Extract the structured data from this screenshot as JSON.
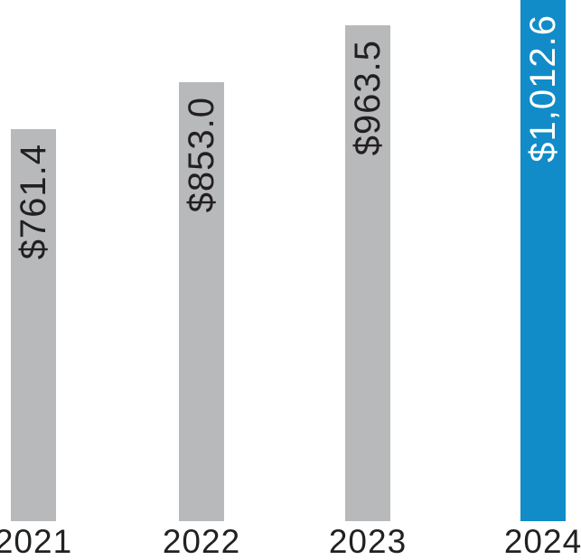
{
  "chart_data": {
    "type": "bar",
    "title": "",
    "xlabel": "",
    "ylabel": "",
    "categories": [
      "2021",
      "2022",
      "2023",
      "2024"
    ],
    "values": [
      761.4,
      853.0,
      963.5,
      1012.6
    ],
    "value_labels": [
      "$761.4",
      "$853.0",
      "$963.5",
      "$1,012.6"
    ],
    "ylim": [
      0,
      1012.6
    ],
    "grid": false,
    "legend": false,
    "axes_visible": false,
    "value_label_rotation_deg": 90,
    "highlight_index": 3,
    "bar_colors": [
      "#b7b9bb",
      "#b7b9bb",
      "#b7b9bb",
      "#118cc8"
    ],
    "value_label_colors": [
      "#231f20",
      "#231f20",
      "#231f20",
      "#ffffff"
    ],
    "axis_label_color": "#1f2123"
  }
}
